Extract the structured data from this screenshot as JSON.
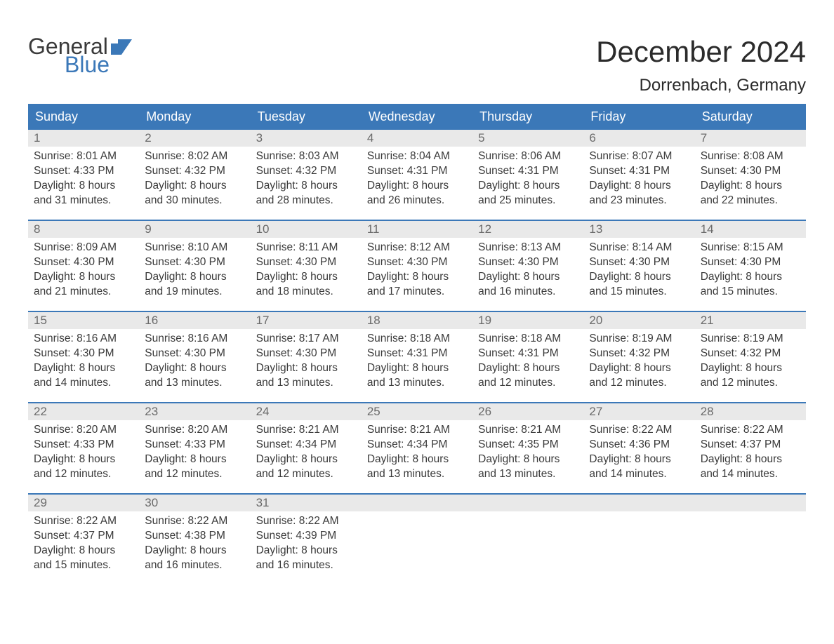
{
  "brand": {
    "word1": "General",
    "word2": "Blue",
    "word1_color": "#3a3a3a",
    "word2_color": "#3b78b8",
    "flag_color": "#3b78b8"
  },
  "title": "December 2024",
  "location": "Dorrenbach, Germany",
  "colors": {
    "header_bg": "#3b78b8",
    "header_text": "#ffffff",
    "daynum_bg": "#e9e9e9",
    "daynum_text": "#6a6a6a",
    "body_text": "#3a3a3a",
    "week_border": "#3b78b8",
    "page_bg": "#ffffff"
  },
  "typography": {
    "title_fontsize": 42,
    "location_fontsize": 24,
    "day_header_fontsize": 18,
    "day_number_fontsize": 17,
    "body_fontsize": 15.5,
    "logo_fontsize": 32
  },
  "layout": {
    "columns": 7,
    "rows": 5,
    "first_day_column_index": 0
  },
  "day_headers": [
    "Sunday",
    "Monday",
    "Tuesday",
    "Wednesday",
    "Thursday",
    "Friday",
    "Saturday"
  ],
  "days": [
    {
      "n": "1",
      "sunrise": "8:01 AM",
      "sunset": "4:33 PM",
      "daylight": "8 hours and 31 minutes."
    },
    {
      "n": "2",
      "sunrise": "8:02 AM",
      "sunset": "4:32 PM",
      "daylight": "8 hours and 30 minutes."
    },
    {
      "n": "3",
      "sunrise": "8:03 AM",
      "sunset": "4:32 PM",
      "daylight": "8 hours and 28 minutes."
    },
    {
      "n": "4",
      "sunrise": "8:04 AM",
      "sunset": "4:31 PM",
      "daylight": "8 hours and 26 minutes."
    },
    {
      "n": "5",
      "sunrise": "8:06 AM",
      "sunset": "4:31 PM",
      "daylight": "8 hours and 25 minutes."
    },
    {
      "n": "6",
      "sunrise": "8:07 AM",
      "sunset": "4:31 PM",
      "daylight": "8 hours and 23 minutes."
    },
    {
      "n": "7",
      "sunrise": "8:08 AM",
      "sunset": "4:30 PM",
      "daylight": "8 hours and 22 minutes."
    },
    {
      "n": "8",
      "sunrise": "8:09 AM",
      "sunset": "4:30 PM",
      "daylight": "8 hours and 21 minutes."
    },
    {
      "n": "9",
      "sunrise": "8:10 AM",
      "sunset": "4:30 PM",
      "daylight": "8 hours and 19 minutes."
    },
    {
      "n": "10",
      "sunrise": "8:11 AM",
      "sunset": "4:30 PM",
      "daylight": "8 hours and 18 minutes."
    },
    {
      "n": "11",
      "sunrise": "8:12 AM",
      "sunset": "4:30 PM",
      "daylight": "8 hours and 17 minutes."
    },
    {
      "n": "12",
      "sunrise": "8:13 AM",
      "sunset": "4:30 PM",
      "daylight": "8 hours and 16 minutes."
    },
    {
      "n": "13",
      "sunrise": "8:14 AM",
      "sunset": "4:30 PM",
      "daylight": "8 hours and 15 minutes."
    },
    {
      "n": "14",
      "sunrise": "8:15 AM",
      "sunset": "4:30 PM",
      "daylight": "8 hours and 15 minutes."
    },
    {
      "n": "15",
      "sunrise": "8:16 AM",
      "sunset": "4:30 PM",
      "daylight": "8 hours and 14 minutes."
    },
    {
      "n": "16",
      "sunrise": "8:16 AM",
      "sunset": "4:30 PM",
      "daylight": "8 hours and 13 minutes."
    },
    {
      "n": "17",
      "sunrise": "8:17 AM",
      "sunset": "4:30 PM",
      "daylight": "8 hours and 13 minutes."
    },
    {
      "n": "18",
      "sunrise": "8:18 AM",
      "sunset": "4:31 PM",
      "daylight": "8 hours and 13 minutes."
    },
    {
      "n": "19",
      "sunrise": "8:18 AM",
      "sunset": "4:31 PM",
      "daylight": "8 hours and 12 minutes."
    },
    {
      "n": "20",
      "sunrise": "8:19 AM",
      "sunset": "4:32 PM",
      "daylight": "8 hours and 12 minutes."
    },
    {
      "n": "21",
      "sunrise": "8:19 AM",
      "sunset": "4:32 PM",
      "daylight": "8 hours and 12 minutes."
    },
    {
      "n": "22",
      "sunrise": "8:20 AM",
      "sunset": "4:33 PM",
      "daylight": "8 hours and 12 minutes."
    },
    {
      "n": "23",
      "sunrise": "8:20 AM",
      "sunset": "4:33 PM",
      "daylight": "8 hours and 12 minutes."
    },
    {
      "n": "24",
      "sunrise": "8:21 AM",
      "sunset": "4:34 PM",
      "daylight": "8 hours and 12 minutes."
    },
    {
      "n": "25",
      "sunrise": "8:21 AM",
      "sunset": "4:34 PM",
      "daylight": "8 hours and 13 minutes."
    },
    {
      "n": "26",
      "sunrise": "8:21 AM",
      "sunset": "4:35 PM",
      "daylight": "8 hours and 13 minutes."
    },
    {
      "n": "27",
      "sunrise": "8:22 AM",
      "sunset": "4:36 PM",
      "daylight": "8 hours and 14 minutes."
    },
    {
      "n": "28",
      "sunrise": "8:22 AM",
      "sunset": "4:37 PM",
      "daylight": "8 hours and 14 minutes."
    },
    {
      "n": "29",
      "sunrise": "8:22 AM",
      "sunset": "4:37 PM",
      "daylight": "8 hours and 15 minutes."
    },
    {
      "n": "30",
      "sunrise": "8:22 AM",
      "sunset": "4:38 PM",
      "daylight": "8 hours and 16 minutes."
    },
    {
      "n": "31",
      "sunrise": "8:22 AM",
      "sunset": "4:39 PM",
      "daylight": "8 hours and 16 minutes."
    }
  ],
  "labels": {
    "sunrise_prefix": "Sunrise: ",
    "sunset_prefix": "Sunset: ",
    "daylight_prefix": "Daylight: "
  }
}
